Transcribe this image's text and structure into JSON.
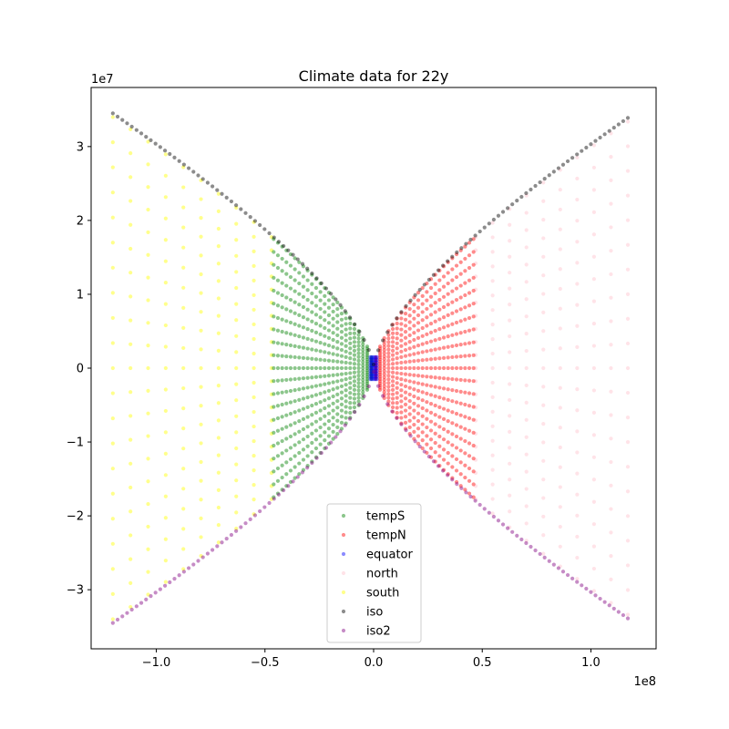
{
  "chart_data": {
    "type": "scatter",
    "title": "Climate data for 22y",
    "xlabel": "",
    "ylabel": "",
    "x_offset_label": "1e8",
    "y_offset_label": "1e7",
    "xlim": [
      -1.3,
      1.3
    ],
    "ylim": [
      -3.8,
      3.8
    ],
    "x_unit_scale": 100000000,
    "y_unit_scale": 10000000,
    "x_ticks": [
      -1.0,
      -0.5,
      0.0,
      0.5,
      1.0
    ],
    "x_tick_labels": [
      "−1.0",
      "−0.5",
      "0.0",
      "0.5",
      "1.0"
    ],
    "y_ticks": [
      -3,
      -2,
      -1,
      0,
      1,
      2,
      3
    ],
    "y_tick_labels": [
      "−3",
      "−2",
      "−1",
      "0",
      "1",
      "2",
      "3"
    ],
    "grid": false,
    "legend_position": "lower-center",
    "marker_alpha": 0.45,
    "series": [
      {
        "name": "tempS",
        "color": "#008000",
        "region": "x from -0.46 to -0.01 (1e8); y bounded by +/- envelope",
        "x_range": [
          -0.46,
          -0.01
        ],
        "columns": 24,
        "rows": 21
      },
      {
        "name": "tempN",
        "color": "#ff0000",
        "region": "x from 0.01 to 0.46 (1e8); y bounded by +/- envelope",
        "x_range": [
          0.01,
          0.46
        ],
        "columns": 24,
        "rows": 21
      },
      {
        "name": "equator",
        "color": "#0000ff",
        "x_range": [
          -0.015,
          0.015
        ],
        "y_range": [
          -0.15,
          0.15
        ]
      },
      {
        "name": "north",
        "color": "#ffc0cb",
        "x_range": [
          0.47,
          1.17
        ],
        "columns": 10,
        "rows": 21
      },
      {
        "name": "south",
        "color": "#ffff00",
        "x_range": [
          -1.2,
          -0.47
        ],
        "columns": 10,
        "rows": 21
      },
      {
        "name": "iso",
        "color": "#000000",
        "points": [
          [
            -1.2,
            3.46
          ],
          [
            -0.9,
            2.92
          ],
          [
            -0.6,
            2.28
          ],
          [
            -0.46,
            1.76
          ],
          [
            -0.3,
            1.28
          ],
          [
            -0.15,
            0.75
          ],
          [
            -0.05,
            0.3
          ],
          [
            0.0,
            0.0
          ],
          [
            0.05,
            0.35
          ],
          [
            0.15,
            0.82
          ],
          [
            0.3,
            1.36
          ],
          [
            0.46,
            1.83
          ],
          [
            0.6,
            2.25
          ],
          [
            0.9,
            2.92
          ],
          [
            1.17,
            3.39
          ]
        ]
      },
      {
        "name": "iso2",
        "color": "#800080",
        "points": [
          [
            -1.2,
            -3.46
          ],
          [
            -0.9,
            -2.92
          ],
          [
            -0.6,
            -2.28
          ],
          [
            -0.46,
            -1.76
          ],
          [
            -0.3,
            -1.28
          ],
          [
            -0.15,
            -0.75
          ],
          [
            -0.05,
            -0.3
          ],
          [
            0.0,
            0.0
          ],
          [
            0.05,
            -0.35
          ],
          [
            0.15,
            -0.82
          ],
          [
            0.3,
            -1.36
          ],
          [
            0.46,
            -1.83
          ],
          [
            0.6,
            -2.25
          ],
          [
            0.9,
            -2.92
          ],
          [
            1.17,
            -3.39
          ]
        ]
      }
    ]
  }
}
